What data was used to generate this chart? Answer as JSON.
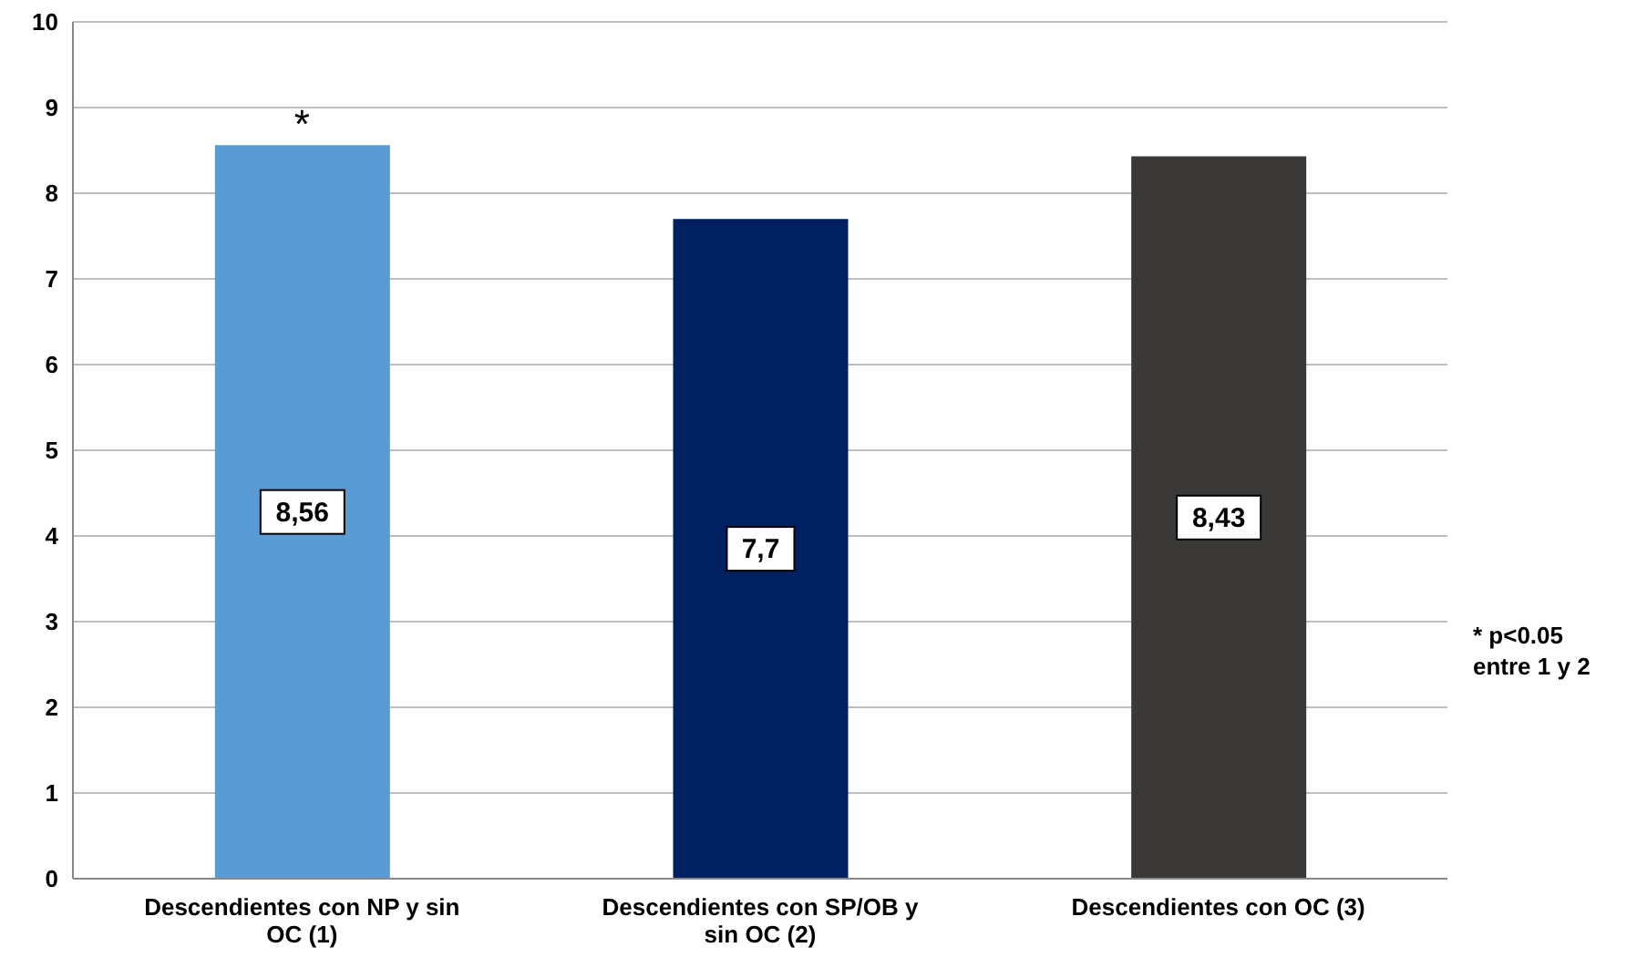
{
  "chart_data": {
    "type": "bar",
    "categories": [
      "Descendientes con NP y sin OC (1)",
      "Descendientes con SP/OB y sin OC (2)",
      "Descendientes con OC (3)"
    ],
    "values": [
      8.56,
      7.7,
      8.43
    ],
    "colors": [
      "#5b9bd5",
      "#002060",
      "#3b3937"
    ],
    "value_labels": [
      "8,56",
      "7,7",
      "8,43"
    ],
    "ylim": [
      0,
      10
    ],
    "yticks": [
      0,
      1,
      2,
      3,
      4,
      5,
      6,
      7,
      8,
      9,
      10
    ],
    "grid": "y",
    "annotations": [
      {
        "text": "*",
        "x": "Descendientes con NP y sin OC (1)",
        "y": 8.56
      },
      "* p<0.05\nentre 1 y 2"
    ]
  }
}
